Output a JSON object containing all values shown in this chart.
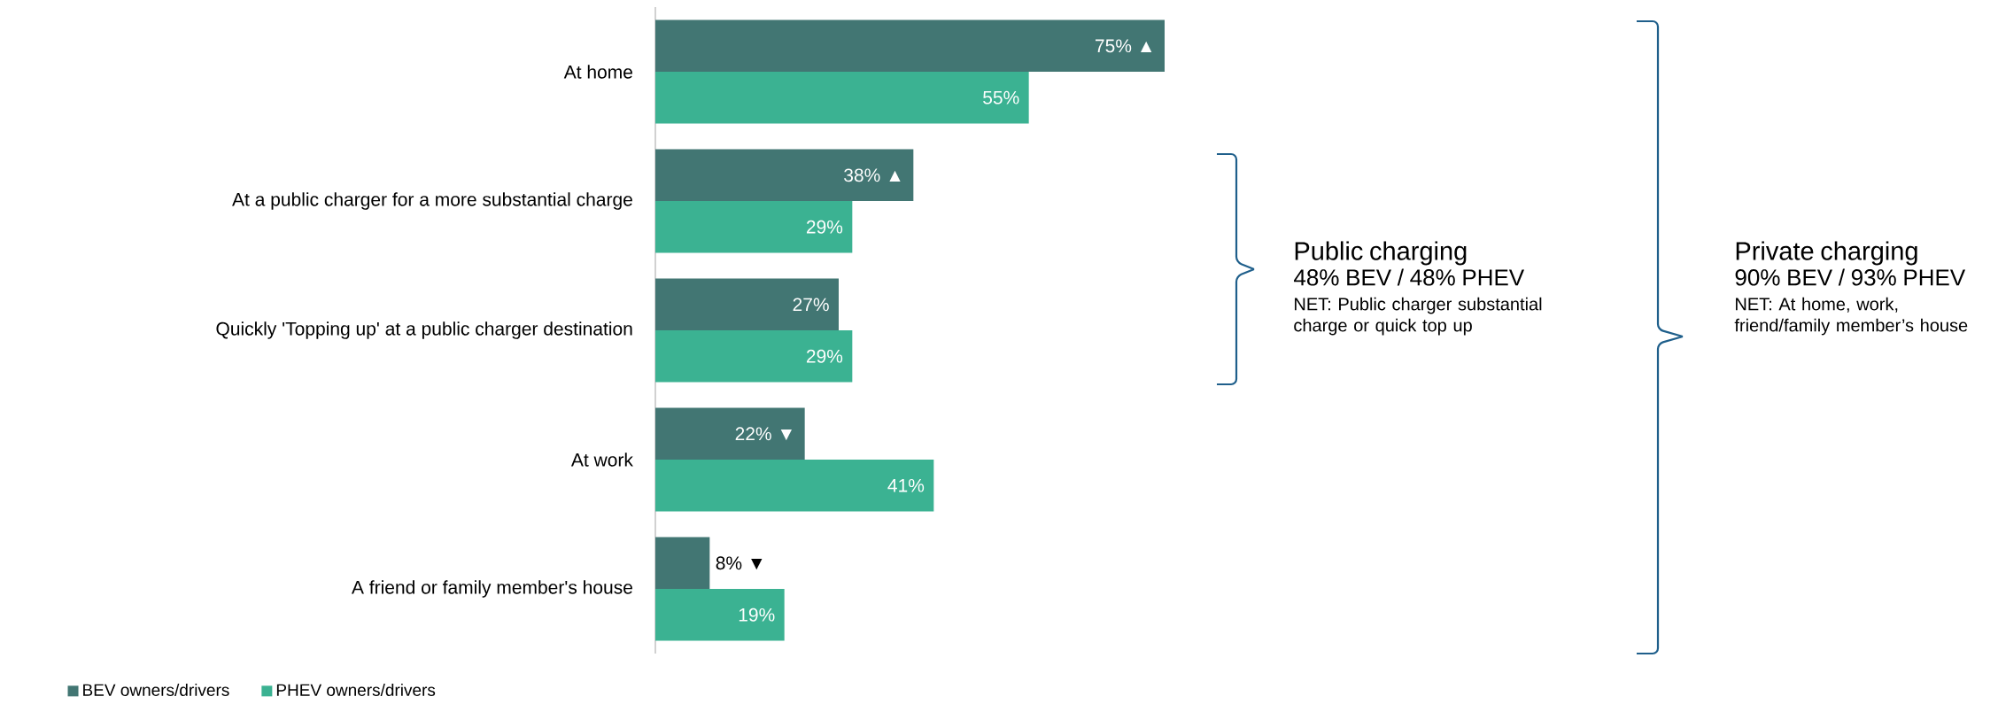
{
  "chart_data": {
    "type": "bar",
    "orientation": "horizontal",
    "categories": [
      "At home",
      "At a public charger for a more substantial charge",
      "Quickly 'Topping up' at a public charger destination",
      "At work",
      "A friend or family member's house"
    ],
    "series": [
      {
        "name": "BEV owners/drivers",
        "color": "#427673",
        "values": [
          75,
          38,
          27,
          22,
          8
        ],
        "value_labels": [
          "75% ▲",
          "38% ▲",
          "27%",
          "22% ▼",
          "8% ▼"
        ]
      },
      {
        "name": "PHEV owners/drivers",
        "color": "#3bb292",
        "values": [
          55,
          29,
          29,
          41,
          19
        ],
        "value_labels": [
          "55%",
          "29%",
          "29%",
          "41%",
          "19%"
        ]
      }
    ],
    "tick_labels": "y",
    "legend": "bottom left",
    "annotations": [
      "Public charging",
      "48% BEV / 48% PHEV",
      "NET: Public charger substantial charge or quick top up",
      "Private charging",
      "90% BEV / 93% PHEV",
      "NET: At home, work, friend/family member’s house"
    ]
  }
}
